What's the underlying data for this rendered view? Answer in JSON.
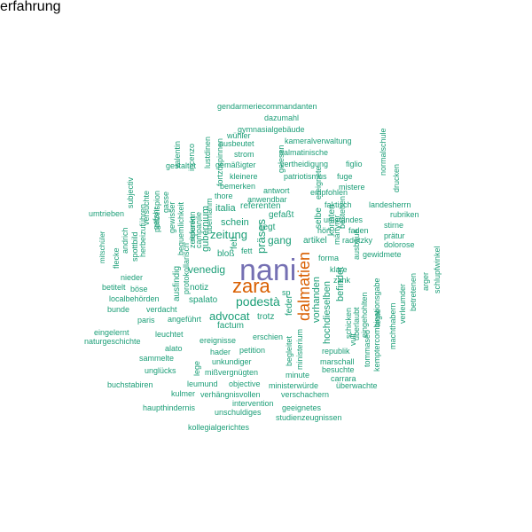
{
  "colors": {
    "teal": "#1b9e77",
    "orange": "#d95f02",
    "purple": "#7570b3"
  },
  "words": [
    {
      "text": "nani",
      "color": "#7570b3"
    },
    {
      "text": "zara",
      "color": "#d95f02"
    },
    {
      "text": "dalmatien",
      "color": "#d95f02"
    },
    {
      "text": "podestà",
      "color": "#1b9e77"
    },
    {
      "text": "venedig",
      "color": "#1b9e77"
    },
    {
      "text": "advocat",
      "color": "#1b9e77"
    },
    {
      "text": "zeitung",
      "color": "#1b9e77"
    },
    {
      "text": "präses",
      "color": "#1b9e77"
    },
    {
      "text": "gang",
      "color": "#1b9e77"
    },
    {
      "text": "schein",
      "color": "#1b9e77"
    },
    {
      "text": "italia",
      "color": "#1b9e77"
    },
    {
      "text": "referenten",
      "color": "#1b9e77"
    },
    {
      "text": "gefaßt",
      "color": "#1b9e77"
    },
    {
      "text": "liegt",
      "color": "#1b9e77"
    },
    {
      "text": "artikel",
      "color": "#1b9e77"
    },
    {
      "text": "notiz",
      "color": "#1b9e77"
    },
    {
      "text": "spalato",
      "color": "#1b9e77"
    },
    {
      "text": "factum",
      "color": "#1b9e77"
    },
    {
      "text": "trotz",
      "color": "#1b9e77"
    },
    {
      "text": "bloß",
      "color": "#1b9e77"
    },
    {
      "text": "fett",
      "color": "#1b9e77"
    },
    {
      "text": "gubernium",
      "color": "#1b9e77"
    },
    {
      "text": "feb",
      "color": "#1b9e77"
    },
    {
      "text": "feder",
      "color": "#1b9e77"
    },
    {
      "text": "vorhanden",
      "color": "#1b9e77"
    },
    {
      "text": "hochdieselben",
      "color": "#1b9e77"
    },
    {
      "text": "befindet",
      "color": "#1b9e77"
    },
    {
      "text": "selbe",
      "color": "#1b9e77"
    },
    {
      "text": "könnten",
      "color": "#1b9e77"
    },
    {
      "text": "gendarmeriecommandanten",
      "color": "#1b9e77"
    },
    {
      "text": "dazumahl",
      "color": "#1b9e77"
    },
    {
      "text": "gymnasialgebäude",
      "color": "#1b9e77"
    },
    {
      "text": "wühler",
      "color": "#1b9e77"
    },
    {
      "text": "kameralverwaltung",
      "color": "#1b9e77"
    },
    {
      "text": "ausbeutet",
      "color": "#1b9e77"
    },
    {
      "text": "strom",
      "color": "#1b9e77"
    },
    {
      "text": "dalmatinische",
      "color": "#1b9e77"
    },
    {
      "text": "gemäßigter",
      "color": "#1b9e77"
    },
    {
      "text": "vertheidigung",
      "color": "#1b9e77"
    },
    {
      "text": "figlio",
      "color": "#1b9e77"
    },
    {
      "text": "gestaltet",
      "color": "#1b9e77"
    },
    {
      "text": "kleinere",
      "color": "#1b9e77"
    },
    {
      "text": "patriotismus",
      "color": "#1b9e77"
    },
    {
      "text": "fuge",
      "color": "#1b9e77"
    },
    {
      "text": "bemerken",
      "color": "#1b9e77"
    },
    {
      "text": "mistere",
      "color": "#1b9e77"
    },
    {
      "text": "thore",
      "color": "#1b9e77"
    },
    {
      "text": "antwort",
      "color": "#1b9e77"
    },
    {
      "text": "empfohlen",
      "color": "#1b9e77"
    },
    {
      "text": "anwendbar",
      "color": "#1b9e77"
    },
    {
      "text": "faktisch",
      "color": "#1b9e77"
    },
    {
      "text": "landesherrn",
      "color": "#1b9e77"
    },
    {
      "text": "rubriken",
      "color": "#1b9e77"
    },
    {
      "text": "umstandes",
      "color": "#1b9e77"
    },
    {
      "text": "stirne",
      "color": "#1b9e77"
    },
    {
      "text": "faden",
      "color": "#1b9e77"
    },
    {
      "text": "prätur",
      "color": "#1b9e77"
    },
    {
      "text": "radetzky",
      "color": "#1b9e77"
    },
    {
      "text": "dolorose",
      "color": "#1b9e77"
    },
    {
      "text": "hört",
      "color": "#1b9e77"
    },
    {
      "text": "gewidmete",
      "color": "#1b9e77"
    },
    {
      "text": "forma",
      "color": "#1b9e77"
    },
    {
      "text": "klare",
      "color": "#1b9e77"
    },
    {
      "text": "zank",
      "color": "#1b9e77"
    },
    {
      "text": "umtrieben",
      "color": "#1b9e77"
    },
    {
      "text": "ausfindig",
      "color": "#1b9e77"
    },
    {
      "text": "nieder",
      "color": "#1b9e77"
    },
    {
      "text": "böse",
      "color": "#1b9e77"
    },
    {
      "text": "bunde",
      "color": "#1b9e77"
    },
    {
      "text": "verdacht",
      "color": "#1b9e77"
    },
    {
      "text": "paris",
      "color": "#1b9e77"
    },
    {
      "text": "angeführt",
      "color": "#1b9e77"
    },
    {
      "text": "betitelt",
      "color": "#1b9e77"
    },
    {
      "text": "localbehörden",
      "color": "#1b9e77"
    },
    {
      "text": "eingelernt",
      "color": "#1b9e77"
    },
    {
      "text": "naturgeschichte",
      "color": "#1b9e77"
    },
    {
      "text": "leuchtet",
      "color": "#1b9e77"
    },
    {
      "text": "ereignisse",
      "color": "#1b9e77"
    },
    {
      "text": "erschien",
      "color": "#1b9e77"
    },
    {
      "text": "alato",
      "color": "#1b9e77"
    },
    {
      "text": "hader",
      "color": "#1b9e77"
    },
    {
      "text": "petition",
      "color": "#1b9e77"
    },
    {
      "text": "sammelte",
      "color": "#1b9e77"
    },
    {
      "text": "unkundiger",
      "color": "#1b9e77"
    },
    {
      "text": "unglücks",
      "color": "#1b9e77"
    },
    {
      "text": "mißvergnügten",
      "color": "#1b9e77"
    },
    {
      "text": "minute",
      "color": "#1b9e77"
    },
    {
      "text": "buchstabiren",
      "color": "#1b9e77"
    },
    {
      "text": "leumund",
      "color": "#1b9e77"
    },
    {
      "text": "objective",
      "color": "#1b9e77"
    },
    {
      "text": "ministerwürde",
      "color": "#1b9e77"
    },
    {
      "text": "überwachte",
      "color": "#1b9e77"
    },
    {
      "text": "kulmer",
      "color": "#1b9e77"
    },
    {
      "text": "verhängnisvollen",
      "color": "#1b9e77"
    },
    {
      "text": "verschachern",
      "color": "#1b9e77"
    },
    {
      "text": "intervention",
      "color": "#1b9e77"
    },
    {
      "text": "haupthindernis",
      "color": "#1b9e77"
    },
    {
      "text": "unschuldiges",
      "color": "#1b9e77"
    },
    {
      "text": "geeignetes",
      "color": "#1b9e77"
    },
    {
      "text": "studienzeugnissen",
      "color": "#1b9e77"
    },
    {
      "text": "kollegialgerichtes",
      "color": "#1b9e77"
    },
    {
      "text": "republik",
      "color": "#1b9e77"
    },
    {
      "text": "marschall",
      "color": "#1b9e77"
    },
    {
      "text": "besuchte",
      "color": "#1b9e77"
    },
    {
      "text": "carrara",
      "color": "#1b9e77"
    },
    {
      "text": "sp",
      "color": "#1b9e77"
    },
    {
      "text": "valentin",
      "color": "#1b9e77"
    },
    {
      "text": "incenzo",
      "color": "#1b9e77"
    },
    {
      "text": "lustdinen",
      "color": "#1b9e77"
    },
    {
      "text": "fortzuspinnen",
      "color": "#1b9e77"
    },
    {
      "text": "gelesen",
      "color": "#1b9e77"
    },
    {
      "text": "ereignete",
      "color": "#1b9e77"
    },
    {
      "text": "normalschule",
      "color": "#1b9e77"
    },
    {
      "text": "drucken",
      "color": "#1b9e77"
    },
    {
      "text": "subjectiv",
      "color": "#1b9e77"
    },
    {
      "text": "polizeispion",
      "color": "#1b9e77"
    },
    {
      "text": "versuchte",
      "color": "#1b9e77"
    },
    {
      "text": "gasse",
      "color": "#1b9e77"
    },
    {
      "text": "gewisser",
      "color": "#1b9e77"
    },
    {
      "text": "bequemlichkeit",
      "color": "#1b9e77"
    },
    {
      "text": "referenn",
      "color": "#1b9e77"
    },
    {
      "text": "übernahm",
      "color": "#1b9e77"
    },
    {
      "text": "campanile",
      "color": "#1b9e77"
    },
    {
      "text": "zeitpunkt",
      "color": "#1b9e77"
    },
    {
      "text": "gefahr",
      "color": "#1b9e77"
    },
    {
      "text": "herbeizuführen",
      "color": "#1b9e77"
    },
    {
      "text": "spottbild",
      "color": "#1b9e77"
    },
    {
      "text": "andrich",
      "color": "#1b9e77"
    },
    {
      "text": "flecke",
      "color": "#1b9e77"
    },
    {
      "text": "mitschüler",
      "color": "#1b9e77"
    },
    {
      "text": "protokollarisch",
      "color": "#1b9e77"
    },
    {
      "text": "lege",
      "color": "#1b9e77"
    },
    {
      "text": "arger",
      "color": "#1b9e77"
    },
    {
      "text": "schlupfwinkel",
      "color": "#1b9e77"
    },
    {
      "text": "betretenen",
      "color": "#1b9e77"
    },
    {
      "text": "verleumder",
      "color": "#1b9e77"
    },
    {
      "text": "machthabern",
      "color": "#1b9e77"
    },
    {
      "text": "kemptercombinationsgabe",
      "color": "#1b9e77"
    },
    {
      "text": "tommaseo",
      "color": "#1b9e77"
    },
    {
      "text": "vult",
      "color": "#1b9e77"
    },
    {
      "text": "eingehohlten",
      "color": "#1b9e77"
    },
    {
      "text": "überlaubt",
      "color": "#1b9e77"
    },
    {
      "text": "schicken",
      "color": "#1b9e77"
    },
    {
      "text": "ministerium",
      "color": "#1b9e77"
    },
    {
      "text": "begleitet",
      "color": "#1b9e77"
    },
    {
      "text": "ausbaue",
      "color": "#1b9e77"
    },
    {
      "text": "legte",
      "color": "#1b9e77"
    },
    {
      "text": "märtyrer",
      "color": "#1b9e77"
    },
    {
      "text": "bestehen",
      "color": "#1b9e77"
    },
    {
      "text": "erfahrung",
      "color": "#1b9e77"
    }
  ]
}
